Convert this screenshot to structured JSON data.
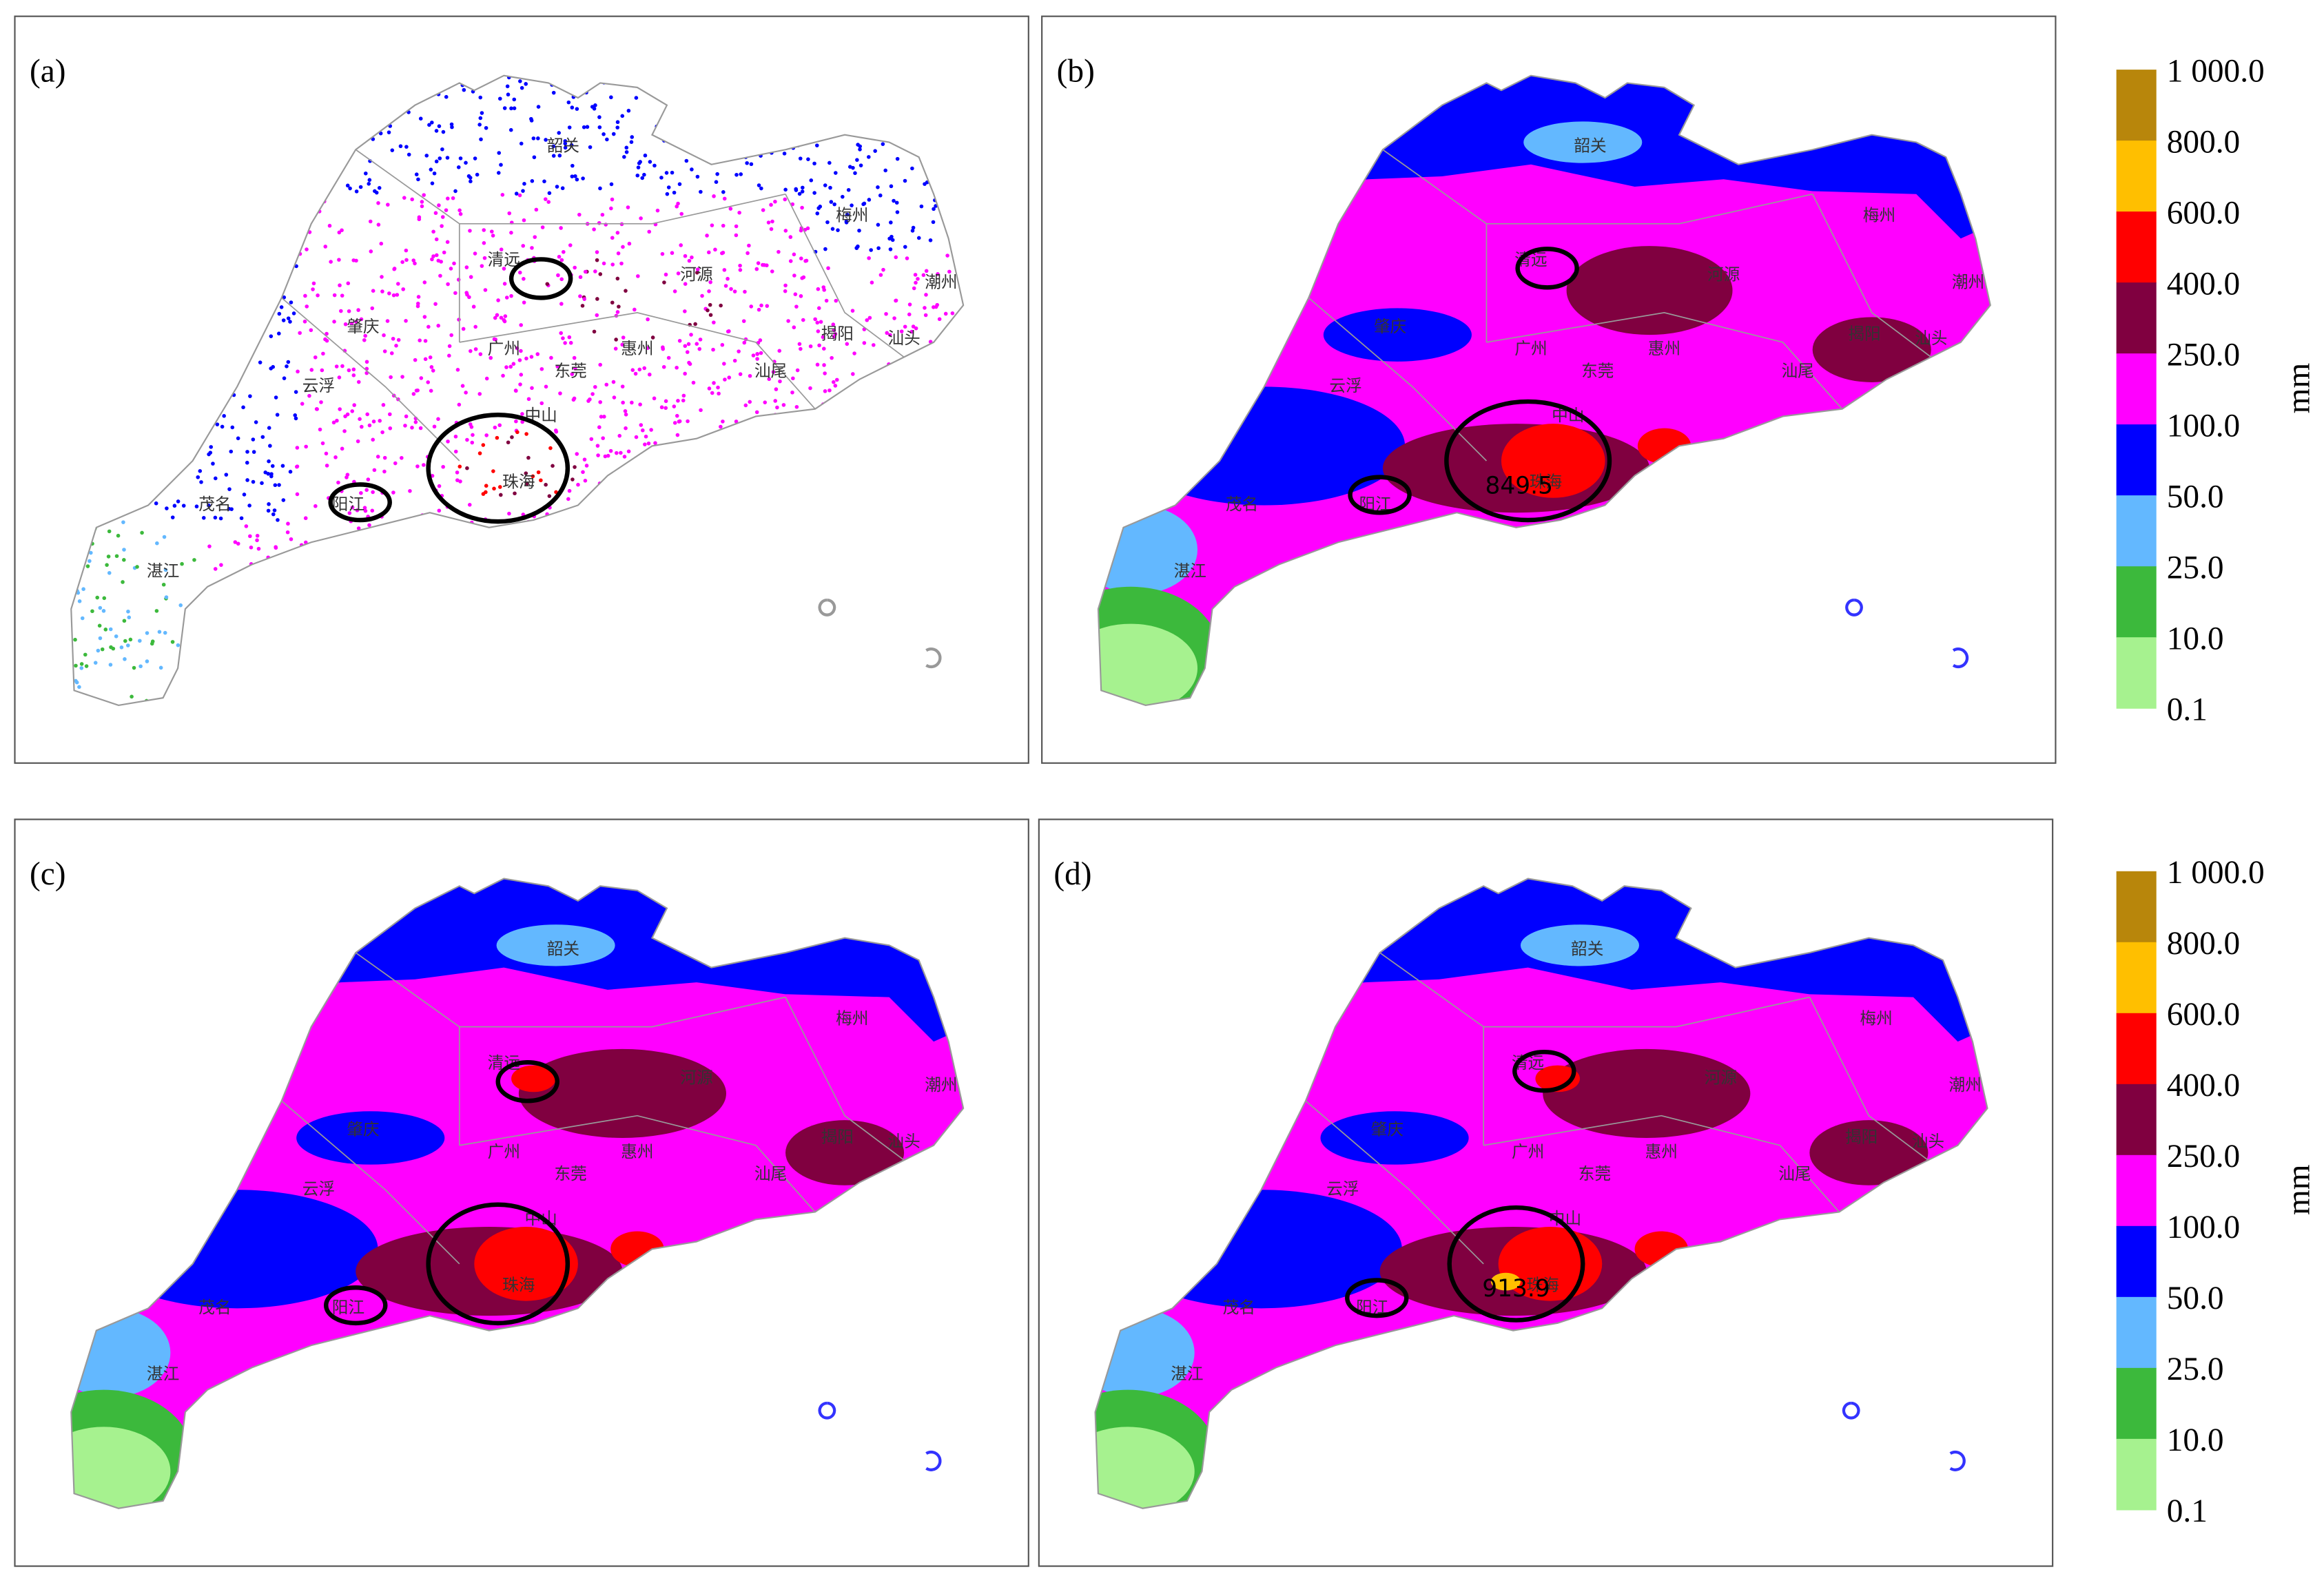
{
  "panels": [
    {
      "label": "(a)"
    },
    {
      "label": "(b)",
      "annotation": "849.5"
    },
    {
      "label": "(c)"
    },
    {
      "label": "(d)",
      "annotation": "913.9"
    }
  ],
  "cities": [
    "韶关",
    "清远",
    "河源",
    "梅州",
    "潮州",
    "揭阳",
    "汕头",
    "汕尾",
    "惠州",
    "广州",
    "东莞",
    "肇庆",
    "云浮",
    "中山",
    "珠海",
    "阳江",
    "茂名",
    "湛江"
  ],
  "colorbar": {
    "unit": "mm",
    "levels": [
      {
        "value": 1000,
        "label": "1 000.0"
      },
      {
        "value": 800,
        "label": "800.0"
      },
      {
        "value": 600,
        "label": "600.0"
      },
      {
        "value": 400,
        "label": "400.0"
      },
      {
        "value": 250,
        "label": "250.0"
      },
      {
        "value": 100,
        "label": "100.0"
      },
      {
        "value": 50,
        "label": "50.0"
      },
      {
        "value": 25,
        "label": "25.0"
      },
      {
        "value": 10,
        "label": "10.0"
      },
      {
        "value": 0.1,
        "label": "0.1"
      }
    ],
    "colors": [
      "#b8860b",
      "#ffbf00",
      "#ff0000",
      "#800040",
      "#ff00ff",
      "#0000ff",
      "#63b8ff",
      "#3cb93c",
      "#a6f28f"
    ]
  }
}
